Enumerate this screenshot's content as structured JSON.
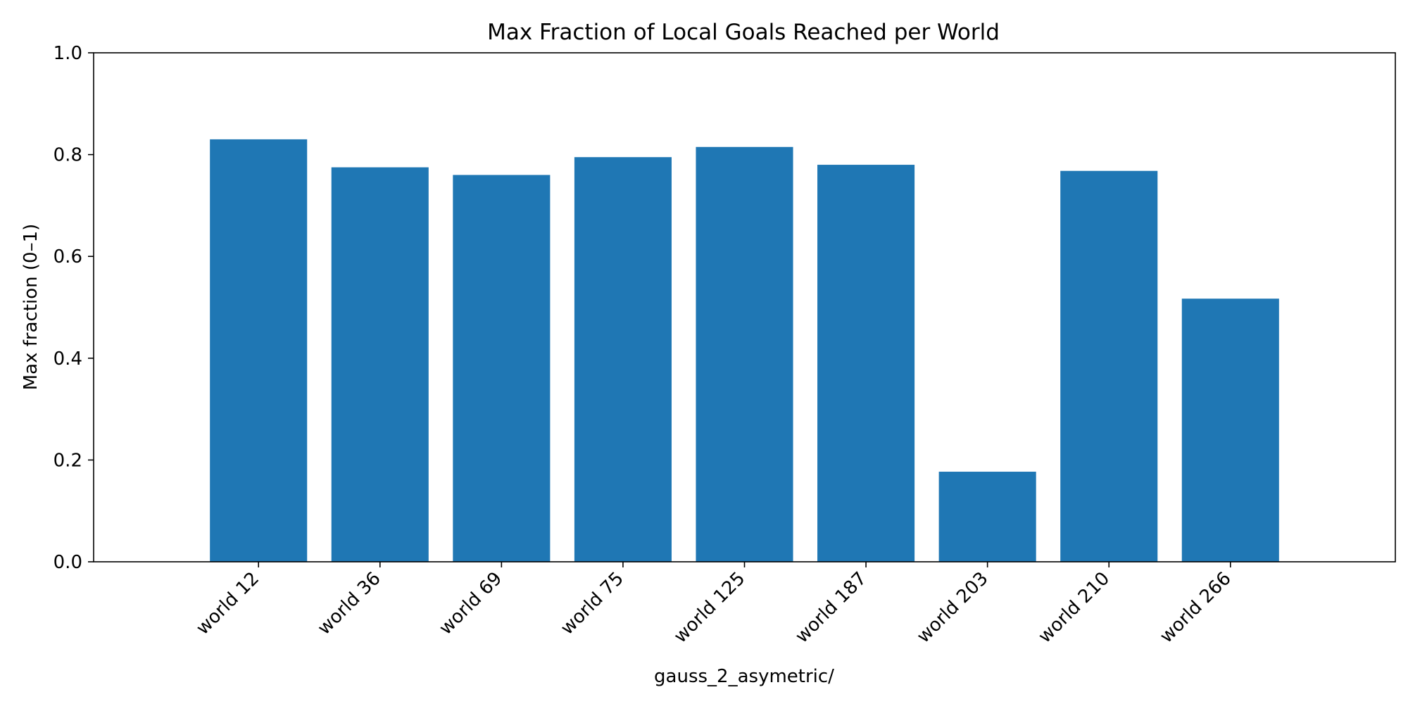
{
  "chart_data": {
    "type": "bar",
    "title": "Max Fraction of Local Goals Reached per World",
    "xlabel": "gauss_2_asymetric/",
    "ylabel": "Max fraction (0–1)",
    "categories": [
      "world 12",
      "world 36",
      "world 69",
      "world 75",
      "world 125",
      "world 187",
      "world 203",
      "world 210",
      "world 266"
    ],
    "values": [
      0.83,
      0.775,
      0.76,
      0.795,
      0.815,
      0.78,
      0.177,
      0.768,
      0.517
    ],
    "ylim": [
      0,
      1.0
    ],
    "yticks": [
      "0.0",
      "0.2",
      "0.4",
      "0.6",
      "0.8",
      "1.0"
    ],
    "bar_color": "#1f77b4",
    "grid": false,
    "legend": "none"
  }
}
